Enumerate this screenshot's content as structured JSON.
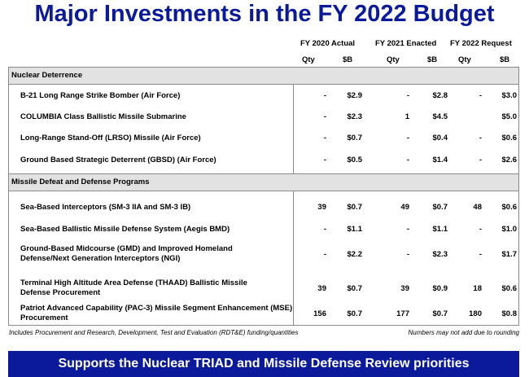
{
  "title": "Major Investments in the FY 2022 Budget",
  "columns": {
    "groups": [
      "FY 2020 Actual",
      "FY 2021 Enacted",
      "FY 2022 Request"
    ],
    "qty": "Qty",
    "sb": "$B"
  },
  "sections": [
    {
      "name": "Nuclear Deterrence",
      "rows": [
        {
          "label": "B-21 Long Range Strike Bomber (Air Force)",
          "values": [
            "-",
            "$2.9",
            "-",
            "$2.8",
            "-",
            "$3.0"
          ]
        },
        {
          "label": "COLUMBIA Class Ballistic Missile Submarine",
          "values": [
            "-",
            "$2.3",
            "1",
            "$4.5",
            "",
            "$5.0"
          ]
        },
        {
          "label": "Long-Range Stand-Off (LRSO) Missile (Air Force)",
          "values": [
            "-",
            "$0.7",
            "-",
            "$0.4",
            "-",
            "$0.6"
          ]
        },
        {
          "label": "Ground Based Strategic Deterrent (GBSD) (Air Force)",
          "values": [
            "-",
            "$0.5",
            "-",
            "$1.4",
            "-",
            "$2.6"
          ]
        }
      ]
    },
    {
      "name": "Missile Defeat and Defense Programs",
      "rows": [
        {
          "label": "Sea-Based Interceptors (SM-3 IIA and SM-3 IB)",
          "values": [
            "39",
            "$0.7",
            "49",
            "$0.7",
            "48",
            "$0.6"
          ]
        },
        {
          "label": "Sea-Based Ballistic Missile Defense System (Aegis BMD)",
          "values": [
            "-",
            "$1.1",
            "-",
            "$1.1",
            "-",
            "$1.0"
          ]
        },
        {
          "label": "Ground-Based Midcourse (GMD) and Improved Homeland Defense/Next Generation Interceptors (NGI)",
          "values": [
            "-",
            "$2.2",
            "-",
            "$2.3",
            "-",
            "$1.7"
          ]
        },
        {
          "label": "Terminal High Altitude Area Defense (THAAD) Ballistic Missile Defense Procurement",
          "values": [
            "39",
            "$0.7",
            "39",
            "$0.9",
            "18",
            "$0.6"
          ]
        },
        {
          "label": "Patriot Advanced Capability (PAC-3) Missile Segment Enhancement (MSE) Procurement",
          "values": [
            "156",
            "$0.7",
            "177",
            "$0.7",
            "180",
            "$0.8"
          ]
        }
      ]
    }
  ],
  "footnote_left": "Includes Procurement and Research, Development, Test and Evaluation (RDT&E) funding/quantities",
  "footnote_right": "Numbers may not add due to rounding",
  "banner": "Supports the Nuclear TRIAD and Missile Defense Review priorities"
}
